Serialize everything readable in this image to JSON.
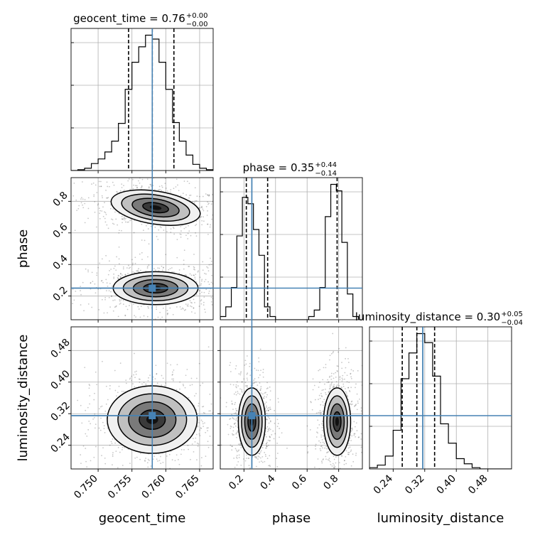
{
  "chart_data": {
    "type": "corner",
    "parameters": [
      "geocent_time",
      "phase",
      "luminosity_distance"
    ],
    "truths": {
      "geocent_time": 0.758,
      "phase": 0.25,
      "luminosity_distance": 0.315
    },
    "axes": {
      "geocent_time": {
        "xlim": [
          0.746,
          0.767
        ],
        "ticks": [
          0.75,
          0.755,
          0.76,
          0.765
        ],
        "tick_labels": [
          "0.750",
          "0.755",
          "0.760",
          "0.765"
        ],
        "label": "geocent_time"
      },
      "phase": {
        "lim": [
          0.05,
          0.95
        ],
        "ticks": [
          0.2,
          0.4,
          0.6,
          0.8
        ],
        "tick_labels": [
          "0.2",
          "0.4",
          "0.6",
          "0.8"
        ],
        "label": "phase"
      },
      "luminosity_distance": {
        "lim": [
          0.18,
          0.54
        ],
        "ticks": [
          0.24,
          0.32,
          0.4,
          0.48
        ],
        "tick_labels": [
          "0.24",
          "0.32",
          "0.40",
          "0.48"
        ],
        "label": "luminosity_distance"
      }
    },
    "titles": [
      {
        "param": "geocent_time",
        "label": "geocent_time = 0.76",
        "plus": "+0.00",
        "minus": "−0.00"
      },
      {
        "param": "phase",
        "label": "phase = 0.35",
        "plus": "+0.44",
        "minus": "−0.14"
      },
      {
        "param": "luminosity_distance",
        "label": "luminosity_distance = 0.30",
        "plus": "+0.05",
        "minus": "−0.04"
      }
    ],
    "histograms": {
      "geocent_time": {
        "edges": [
          0.746,
          0.747,
          0.748,
          0.749,
          0.75,
          0.751,
          0.752,
          0.753,
          0.754,
          0.755,
          0.756,
          0.757,
          0.758,
          0.759,
          0.76,
          0.761,
          0.762,
          0.763,
          0.764,
          0.765,
          0.766,
          0.767
        ],
        "counts": [
          0,
          1,
          3,
          9,
          15,
          24,
          38,
          61,
          105,
          140,
          160,
          175,
          170,
          140,
          105,
          62,
          38,
          20,
          8,
          3,
          1
        ],
        "quantiles": [
          0.7545,
          0.758,
          0.7612
        ]
      },
      "phase": {
        "edges": [
          0.05,
          0.085,
          0.12,
          0.155,
          0.19,
          0.225,
          0.26,
          0.295,
          0.33,
          0.365,
          0.4,
          0.435,
          0.47,
          0.505,
          0.54,
          0.575,
          0.61,
          0.645,
          0.68,
          0.715,
          0.75,
          0.785,
          0.82,
          0.855,
          0.89,
          0.925
        ],
        "counts": [
          1,
          4,
          10,
          26,
          38,
          36,
          28,
          20,
          4,
          1,
          0,
          0,
          0,
          0,
          0,
          0,
          1,
          3,
          10,
          32,
          42,
          40,
          24,
          8,
          1
        ],
        "quantiles": [
          0.215,
          0.35,
          0.79
        ]
      },
      "luminosity_distance": {
        "edges": [
          0.18,
          0.2,
          0.22,
          0.24,
          0.26,
          0.28,
          0.3,
          0.32,
          0.34,
          0.36,
          0.38,
          0.4,
          0.42,
          0.44,
          0.46,
          0.48,
          0.5,
          0.52,
          0.54
        ],
        "counts": [
          1,
          3,
          10,
          30,
          70,
          90,
          105,
          98,
          72,
          35,
          20,
          8,
          4,
          1,
          0,
          0,
          0,
          0
        ],
        "quantiles": [
          0.263,
          0.3,
          0.345
        ]
      }
    },
    "density_clusters": {
      "geocent_time_vs_phase": [
        {
          "cx": 0.7585,
          "cy": 0.76,
          "sx": 0.0035,
          "sy": 0.055,
          "tilt": -0.35
        },
        {
          "cx": 0.7585,
          "cy": 0.25,
          "sx": 0.0033,
          "sy": 0.055,
          "tilt": 0.0
        }
      ],
      "geocent_time_vs_luminosity_distance": [
        {
          "cx": 0.758,
          "cy": 0.305,
          "sx": 0.0035,
          "sy": 0.045,
          "tilt": 0.0
        }
      ],
      "phase_vs_luminosity_distance": [
        {
          "cx": 0.25,
          "cy": 0.3,
          "sx": 0.045,
          "sy": 0.045,
          "tilt": 0.0
        },
        {
          "cx": 0.79,
          "cy": 0.3,
          "sx": 0.045,
          "sy": 0.045,
          "tilt": 0.0
        }
      ]
    }
  }
}
